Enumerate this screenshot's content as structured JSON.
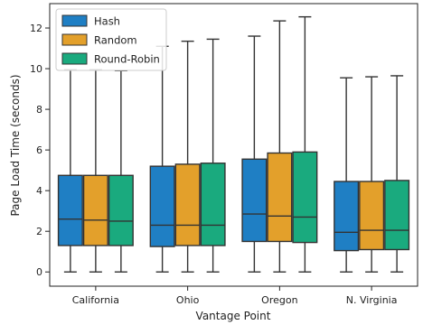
{
  "chart_data": {
    "type": "boxplot",
    "xlabel": "Vantage Point",
    "ylabel": "Page Load Time (seconds)",
    "ylim": [
      -0.7,
      13.2
    ],
    "yticks": [
      0,
      2,
      4,
      6,
      8,
      10,
      12
    ],
    "grid": false,
    "legend_position": "top-left",
    "categories": [
      "California",
      "Ohio",
      "Oregon",
      "N. Virginia"
    ],
    "series": [
      {
        "name": "Hash",
        "color": "#1f7fc4",
        "boxes": [
          {
            "whisker_low": 0.0,
            "q1": 1.3,
            "median": 2.6,
            "q3": 4.75,
            "whisker_high": 9.95
          },
          {
            "whisker_low": 0.0,
            "q1": 1.25,
            "median": 2.3,
            "q3": 5.2,
            "whisker_high": 11.1
          },
          {
            "whisker_low": 0.0,
            "q1": 1.5,
            "median": 2.85,
            "q3": 5.55,
            "whisker_high": 11.6
          },
          {
            "whisker_low": 0.0,
            "q1": 1.05,
            "median": 1.95,
            "q3": 4.45,
            "whisker_high": 9.55
          }
        ]
      },
      {
        "name": "Random",
        "color": "#e3a02b",
        "boxes": [
          {
            "whisker_low": 0.0,
            "q1": 1.3,
            "median": 2.55,
            "q3": 4.75,
            "whisker_high": 9.95
          },
          {
            "whisker_low": 0.0,
            "q1": 1.3,
            "median": 2.3,
            "q3": 5.3,
            "whisker_high": 11.35
          },
          {
            "whisker_low": 0.0,
            "q1": 1.5,
            "median": 2.75,
            "q3": 5.85,
            "whisker_high": 12.35
          },
          {
            "whisker_low": 0.0,
            "q1": 1.1,
            "median": 2.05,
            "q3": 4.45,
            "whisker_high": 9.6
          }
        ]
      },
      {
        "name": "Round-Robin",
        "color": "#1aaa7e",
        "boxes": [
          {
            "whisker_low": 0.0,
            "q1": 1.3,
            "median": 2.5,
            "q3": 4.75,
            "whisker_high": 9.9
          },
          {
            "whisker_low": 0.0,
            "q1": 1.3,
            "median": 2.3,
            "q3": 5.35,
            "whisker_high": 11.45
          },
          {
            "whisker_low": 0.0,
            "q1": 1.45,
            "median": 2.7,
            "q3": 5.9,
            "whisker_high": 12.55
          },
          {
            "whisker_low": 0.0,
            "q1": 1.1,
            "median": 2.05,
            "q3": 4.5,
            "whisker_high": 9.65
          }
        ]
      }
    ]
  }
}
